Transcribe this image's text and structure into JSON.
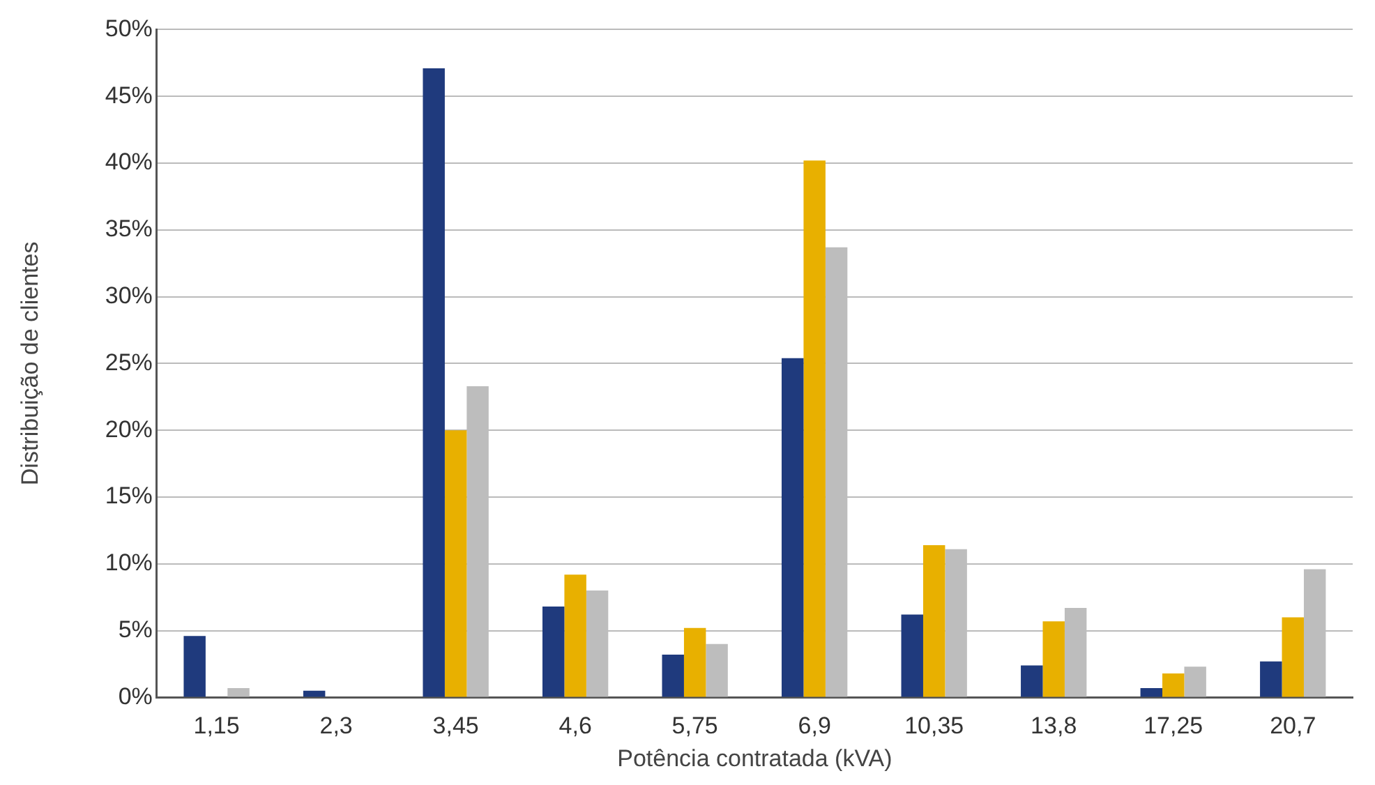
{
  "chart_data": {
    "type": "bar",
    "xlabel": "Potência contratada (kVA)",
    "ylabel": "Distribuição de clientes",
    "categories": [
      "1,15",
      "2,3",
      "3,45",
      "4,6",
      "5,75",
      "6,9",
      "10,35",
      "13,8",
      "17,25",
      "20,7"
    ],
    "series": [
      {
        "color": "#1f3a7d",
        "values": [
          4.6,
          0.5,
          47.1,
          6.8,
          3.2,
          25.4,
          6.2,
          2.4,
          0.7,
          2.7
        ]
      },
      {
        "color": "#e8b000",
        "values": [
          0,
          0,
          20.0,
          9.2,
          5.2,
          40.2,
          11.4,
          5.7,
          1.8,
          6.0
        ]
      },
      {
        "color": "#bdbdbd",
        "values": [
          0.7,
          0,
          23.3,
          8.0,
          4.0,
          33.7,
          11.1,
          6.7,
          2.3,
          9.6
        ]
      }
    ],
    "ylim": [
      0,
      50
    ],
    "yticks": [
      {
        "value": 0,
        "label": "0%"
      },
      {
        "value": 5,
        "label": "5%"
      },
      {
        "value": 10,
        "label": "10%"
      },
      {
        "value": 15,
        "label": "15%"
      },
      {
        "value": 20,
        "label": "20%"
      },
      {
        "value": 25,
        "label": "25%"
      },
      {
        "value": 30,
        "label": "30%"
      },
      {
        "value": 35,
        "label": "35%"
      },
      {
        "value": 40,
        "label": "40%"
      },
      {
        "value": 45,
        "label": "45%"
      },
      {
        "value": 50,
        "label": "50%"
      }
    ],
    "grid": "y",
    "legend": false
  }
}
